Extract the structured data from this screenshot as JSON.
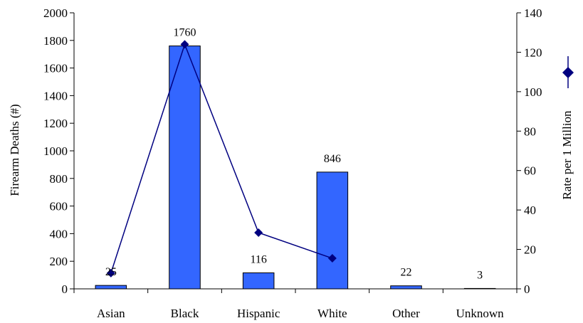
{
  "chart_data": {
    "type": "bar",
    "categories": [
      "Asian",
      "Black",
      "Hispanic",
      "White",
      "Other",
      "Unknown"
    ],
    "series": [
      {
        "type": "bar",
        "axis": "left",
        "values": [
          25,
          1760,
          116,
          846,
          22,
          3
        ],
        "data_labels": [
          "25",
          "1760",
          "116",
          "846",
          "22",
          "3"
        ],
        "color": "#3366ff"
      },
      {
        "type": "line",
        "axis": "right",
        "values": [
          8,
          124,
          28.5,
          15.5,
          null,
          null
        ],
        "color": "#000080",
        "marker": "diamond"
      }
    ],
    "ylabel": "Firearm Deaths (#)",
    "y2label": "Rate per 1 Million",
    "ylim": [
      0,
      2000
    ],
    "y2lim": [
      0,
      140
    ],
    "yticks": [
      "0",
      "200",
      "400",
      "600",
      "800",
      "1000",
      "1200",
      "1400",
      "1600",
      "1800",
      "2000"
    ],
    "y2ticks": [
      "0",
      "20",
      "40",
      "60",
      "80",
      "100",
      "120",
      "140"
    ],
    "legend": {
      "placement": "right",
      "marker": "diamond"
    },
    "grid": false
  }
}
